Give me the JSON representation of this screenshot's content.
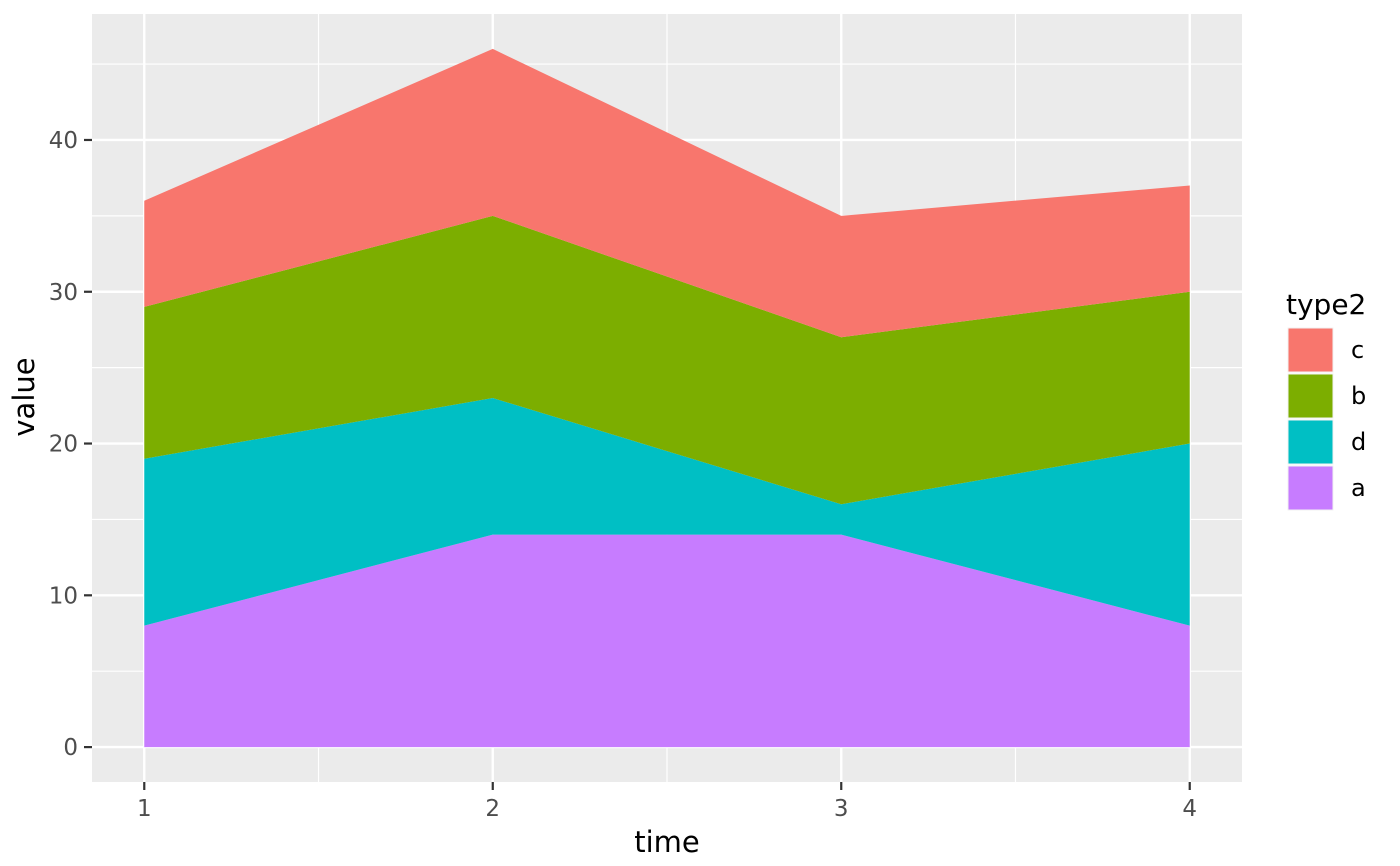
{
  "chart_data": {
    "type": "area",
    "variant": "stacked",
    "title": "",
    "xlabel": "time",
    "ylabel": "value",
    "x": [
      1,
      2,
      3,
      4
    ],
    "x_tick_labels": [
      "1",
      "2",
      "3",
      "4"
    ],
    "y_ticks": [
      0,
      10,
      20,
      30,
      40
    ],
    "y_tick_labels": [
      "0",
      "10",
      "20",
      "30",
      "40"
    ],
    "y_minor_ticks": [
      5,
      15,
      25,
      35,
      45
    ],
    "x_minor_ticks": [
      1.5,
      2.5,
      3.5
    ],
    "xlim": [
      0.85,
      4.15
    ],
    "ylim": [
      -2.3,
      48.3
    ],
    "grid": true,
    "stack_order_bottom_to_top": [
      "a",
      "d",
      "b",
      "c"
    ],
    "series": [
      {
        "name": "a",
        "color": "#C77CFF",
        "values": [
          8,
          14,
          14,
          8
        ]
      },
      {
        "name": "d",
        "color": "#00BFC4",
        "values": [
          11,
          9,
          2,
          12
        ]
      },
      {
        "name": "b",
        "color": "#7CAE00",
        "values": [
          10,
          12,
          11,
          10
        ]
      },
      {
        "name": "c",
        "color": "#F8766D",
        "values": [
          7,
          11,
          8,
          7
        ]
      }
    ],
    "stacked_tops": {
      "a": [
        8,
        14,
        14,
        8
      ],
      "d": [
        19,
        23,
        16,
        20
      ],
      "b": [
        29,
        35,
        27,
        30
      ],
      "c": [
        36,
        46,
        35,
        37
      ]
    },
    "legend": {
      "title": "type2",
      "position": "right",
      "entries": [
        {
          "label": "c",
          "color": "#F8766D"
        },
        {
          "label": "b",
          "color": "#7CAE00"
        },
        {
          "label": "d",
          "color": "#00BFC4"
        },
        {
          "label": "a",
          "color": "#C77CFF"
        }
      ]
    },
    "colors": {
      "panel_background": "#EBEBEB",
      "grid": "#FFFFFF",
      "tick_marks": "#333333",
      "tick_labels": "#4D4D4D",
      "axis_titles": "#000000",
      "legend_text": "#000000",
      "page_background": "#FFFFFF"
    }
  }
}
